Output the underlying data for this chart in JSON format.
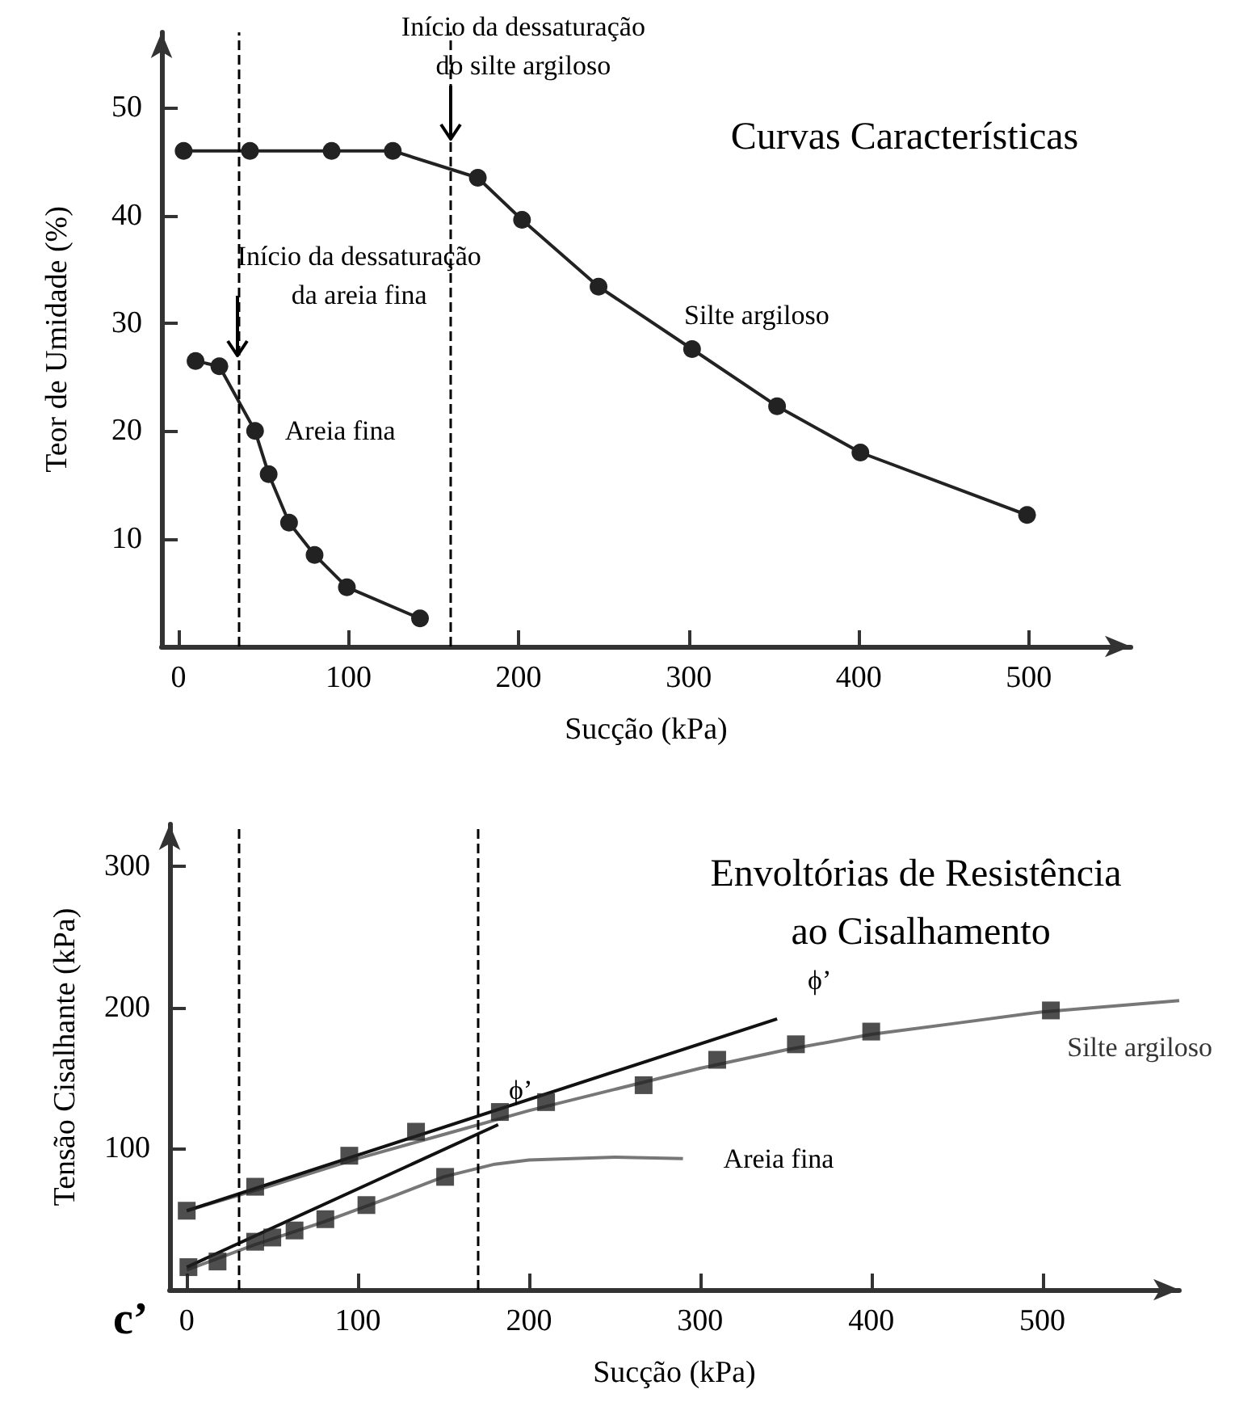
{
  "chart_data": [
    {
      "type": "line",
      "title": "Curvas Características",
      "xlabel": "Sucção (kPa)",
      "ylabel": "Teor de Umidade (%)",
      "xlim": [
        -10,
        560
      ],
      "xticks": [
        0,
        100,
        200,
        300,
        400,
        500
      ],
      "ylim": [
        0,
        57
      ],
      "yticks": [
        10,
        20,
        30,
        40,
        50
      ],
      "grid": false,
      "marker": "circle",
      "series": [
        {
          "name": "Silte argiloso",
          "color": "#222222",
          "x": [
            3,
            42,
            90,
            126,
            176,
            202,
            247,
            302,
            352,
            401,
            499
          ],
          "values": [
            46,
            46,
            46,
            46,
            43.5,
            39.6,
            33.4,
            27.6,
            22.3,
            18,
            12.2
          ]
        },
        {
          "name": "Areia fina",
          "color": "#222222",
          "x": [
            10,
            24,
            45,
            53,
            65,
            80,
            99,
            142
          ],
          "values": [
            26.5,
            26,
            20,
            16,
            11.5,
            8.5,
            5.5,
            2.6
          ]
        }
      ],
      "ref_lines": [
        {
          "axis": "x",
          "value": 35,
          "line_style": "dashed",
          "color": "#000000"
        },
        {
          "axis": "x",
          "value": 160,
          "line_style": "dashed",
          "color": "#000000"
        }
      ],
      "annotations": [
        {
          "text": "Início da dessaturação do silte argiloso",
          "x": 160,
          "y": 46
        },
        {
          "text": "Início da dessaturação da areia fina",
          "x": 35,
          "y": 26
        }
      ]
    },
    {
      "type": "scatter",
      "title": "Envoltórias de Resistência ao Cisalhamento",
      "xlabel": "Sucção (kPa)",
      "ylabel": "Tensão Cisalhante (kPa)",
      "xlim": [
        -10,
        580
      ],
      "xticks": [
        0,
        100,
        200,
        300,
        400,
        500
      ],
      "ylim": [
        0,
        330
      ],
      "yticks": [
        100,
        200,
        300
      ],
      "grid": false,
      "marker": "square",
      "series": [
        {
          "name": "Silte argiloso",
          "color": "#222222",
          "x": [
            0,
            40,
            95,
            134,
            183,
            210,
            267,
            310,
            356,
            400,
            505
          ],
          "values": [
            56,
            73,
            95,
            112,
            126,
            133,
            145,
            163,
            174,
            183,
            198
          ]
        },
        {
          "color": "#222222",
          "x": [
            1,
            18,
            40,
            50,
            63,
            81,
            105,
            151
          ],
          "values": [
            16,
            20,
            34,
            37,
            42,
            50,
            60,
            80
          ]
        },
        {
          "type": "line",
          "marker": "none",
          "color": "#777777",
          "x": [
            0,
            50,
            100,
            150,
            200,
            250,
            300,
            350,
            400,
            450,
            500,
            580
          ],
          "values": [
            56,
            74,
            93,
            110,
            127,
            142,
            157,
            170,
            181,
            189,
            197,
            205
          ]
        },
        {
          "type": "line",
          "marker": "none",
          "name": "Areia fina",
          "color": "#777777",
          "x": [
            0,
            40,
            80,
            120,
            150,
            180,
            200,
            250,
            290
          ],
          "values": [
            14,
            32,
            48,
            66,
            80,
            89,
            92,
            94,
            93
          ]
        },
        {
          "type": "line",
          "marker": "none",
          "color": "#111111",
          "x": [
            0,
            345
          ],
          "values": [
            56,
            192
          ]
        },
        {
          "type": "line",
          "marker": "none",
          "color": "#111111",
          "x": [
            0,
            182
          ],
          "values": [
            16,
            117
          ]
        }
      ],
      "ref_lines": [
        {
          "axis": "x",
          "value": 30,
          "line_style": "dashed",
          "color": "#000000"
        },
        {
          "axis": "x",
          "value": 170,
          "line_style": "dashed",
          "color": "#000000"
        }
      ],
      "annotations": [
        "c’",
        "ϕ’",
        "ϕ’"
      ]
    }
  ]
}
